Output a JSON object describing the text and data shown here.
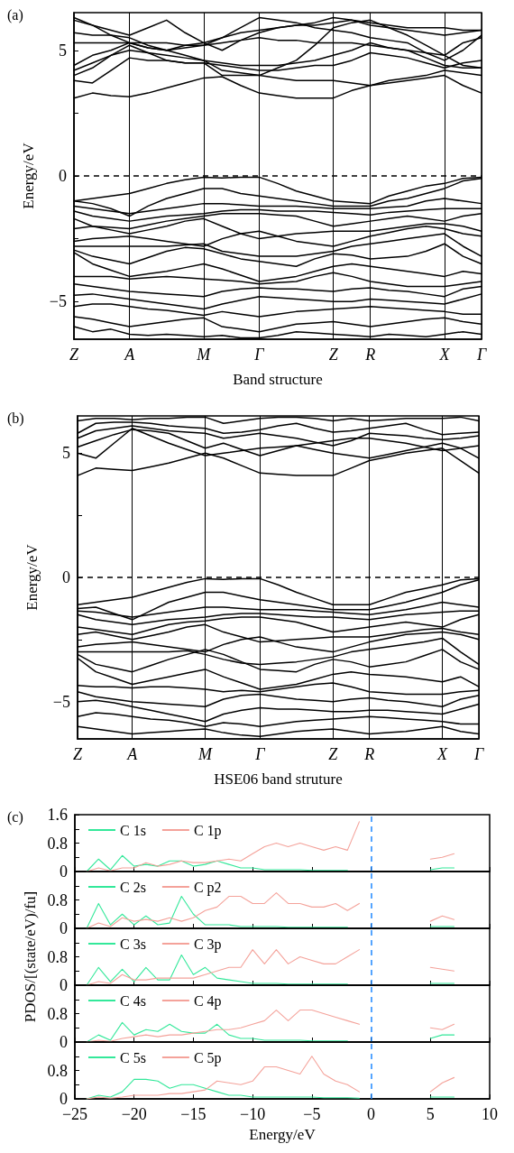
{
  "chart_data": [
    {
      "type": "line",
      "ylabel": "Energy/eV",
      "xlabel": "Band structure",
      "annotations": [
        "(a)"
      ],
      "ylim": [
        -6.5,
        6.5
      ],
      "categories": [
        "Z",
        null,
        null,
        "A",
        null,
        null,
        null,
        "M",
        null,
        null,
        "Γ",
        null,
        null,
        null,
        "Z",
        null,
        "R",
        null,
        null,
        null,
        "X",
        null,
        "Γ"
      ],
      "yticks": [
        {
          "value": -5,
          "label": "−5"
        },
        {
          "value": -2.5,
          "label": null
        },
        0,
        {
          "value": 2.5,
          "label": null
        },
        5
      ],
      "grid": "x",
      "legend": false,
      "marker": "none",
      "line_style": "solid",
      "ref_lines": [
        {
          "axis": "y",
          "value": 0,
          "color": "#000000",
          "line_style": "dashed"
        }
      ],
      "series": [
        {
          "color": "#000000",
          "values": [
            3.1,
            3.3,
            3.2,
            3.15,
            3.3,
            3.5,
            3.7,
            3.9,
            3.95,
            3.6,
            3.3,
            3.2,
            3.1,
            3.1,
            3.1,
            3.4,
            3.6,
            3.7,
            3.8,
            3.9,
            4.0,
            3.6,
            3.3
          ]
        },
        {
          "color": "#000000",
          "values": [
            3.8,
            3.7,
            4.2,
            4.7,
            4.6,
            4.6,
            4.5,
            4.5,
            4.4,
            4.3,
            4.2,
            4.2,
            4.3,
            4.4,
            4.4,
            4.6,
            4.9,
            4.8,
            4.7,
            4.5,
            4.3,
            4.5,
            4.6
          ]
        },
        {
          "color": "#000000",
          "values": [
            4.2,
            4.5,
            4.8,
            5.0,
            4.9,
            4.8,
            4.7,
            4.6,
            4.2,
            4.1,
            4.0,
            3.9,
            3.8,
            3.8,
            3.8,
            3.7,
            3.6,
            3.8,
            3.9,
            4.0,
            4.2,
            4.1,
            4.0
          ]
        },
        {
          "color": "#000000",
          "values": [
            4.4,
            4.8,
            5.0,
            5.3,
            5.1,
            5.0,
            4.8,
            4.6,
            4.5,
            4.4,
            4.4,
            4.4,
            4.5,
            4.6,
            4.8,
            5.0,
            5.3,
            5.1,
            5.0,
            4.7,
            4.4,
            4.3,
            4.3
          ]
        },
        {
          "color": "#000000",
          "values": [
            5.3,
            5.3,
            5.3,
            5.3,
            5.3,
            5.3,
            5.2,
            5.2,
            5.3,
            5.4,
            5.5,
            5.4,
            5.4,
            5.3,
            5.3,
            5.3,
            5.2,
            5.1,
            5.0,
            4.9,
            4.8,
            5.3,
            5.5
          ]
        },
        {
          "color": "#000000",
          "values": [
            5.7,
            5.6,
            5.6,
            5.5,
            5.2,
            5.0,
            5.1,
            5.2,
            5.5,
            5.7,
            5.8,
            5.9,
            6.0,
            6.1,
            6.3,
            6.2,
            6.0,
            5.9,
            5.8,
            5.7,
            5.6,
            5.7,
            5.8
          ]
        },
        {
          "color": "#000000",
          "values": [
            6.2,
            6.0,
            5.8,
            5.6,
            5.9,
            6.2,
            5.7,
            5.3,
            5.0,
            5.4,
            5.7,
            5.9,
            6.0,
            6.0,
            6.1,
            6.2,
            6.1,
            6.0,
            5.9,
            5.9,
            5.9,
            5.8,
            5.8
          ]
        },
        {
          "color": "#000000",
          "values": [
            6.3,
            6.0,
            5.6,
            5.3,
            5.1,
            5.0,
            5.2,
            5.3,
            5.5,
            5.9,
            6.3,
            6.2,
            6.1,
            5.9,
            5.8,
            5.7,
            5.5,
            5.4,
            5.3,
            4.9,
            4.6,
            5.0,
            5.6
          ]
        },
        {
          "color": "#000000",
          "values": [
            4.0,
            4.3,
            4.8,
            5.2,
            4.9,
            4.6,
            4.5,
            4.5,
            4.0,
            4.0,
            4.0,
            4.3,
            4.6,
            5.2,
            5.9,
            6.1,
            6.2,
            5.9,
            5.6,
            5.2,
            4.8,
            4.4,
            4.3
          ]
        },
        {
          "color": "#000000",
          "values": [
            -1.0,
            -0.9,
            -0.8,
            -0.7,
            -0.5,
            -0.3,
            -0.15,
            -0.05,
            -0.08,
            -0.05,
            -0.05,
            -0.3,
            -0.6,
            -0.8,
            -1.0,
            -1.05,
            -1.1,
            -0.8,
            -0.6,
            -0.4,
            -0.3,
            -0.1,
            -0.05
          ]
        },
        {
          "color": "#000000",
          "values": [
            -1.0,
            -1.1,
            -1.3,
            -1.6,
            -1.2,
            -0.9,
            -0.7,
            -0.5,
            -0.5,
            -0.7,
            -0.8,
            -0.9,
            -1.0,
            -1.1,
            -1.2,
            -1.2,
            -1.2,
            -1.0,
            -0.9,
            -0.7,
            -0.5,
            -0.2,
            -0.1
          ]
        },
        {
          "color": "#000000",
          "values": [
            -1.2,
            -1.3,
            -1.4,
            -1.5,
            -1.4,
            -1.3,
            -1.2,
            -1.1,
            -1.1,
            -1.15,
            -1.2,
            -1.2,
            -1.2,
            -1.25,
            -1.3,
            -1.3,
            -1.3,
            -1.25,
            -1.2,
            -1.0,
            -0.9,
            -1.0,
            -1.1
          ]
        },
        {
          "color": "#000000",
          "values": [
            -1.4,
            -1.6,
            -1.7,
            -1.8,
            -1.7,
            -1.6,
            -1.55,
            -1.5,
            -1.4,
            -1.35,
            -1.35,
            -1.4,
            -1.4,
            -1.4,
            -1.45,
            -1.5,
            -1.55,
            -1.45,
            -1.4,
            -1.35,
            -1.3,
            -1.3,
            -1.3
          ]
        },
        {
          "color": "#000000",
          "values": [
            -1.7,
            -2.0,
            -2.05,
            -2.1,
            -1.95,
            -1.8,
            -1.7,
            -1.6,
            -1.5,
            -1.5,
            -1.5,
            -1.55,
            -1.6,
            -1.8,
            -2.0,
            -1.9,
            -1.8,
            -1.7,
            -1.6,
            -1.7,
            -1.8,
            -1.6,
            -1.5
          ]
        },
        {
          "color": "#000000",
          "values": [
            -2.1,
            -2.0,
            -2.15,
            -2.3,
            -2.15,
            -2.0,
            -1.8,
            -1.7,
            -2.0,
            -2.3,
            -2.5,
            -2.4,
            -2.3,
            -2.25,
            -2.2,
            -2.2,
            -2.2,
            -2.1,
            -2.0,
            -1.9,
            -1.9,
            -2.0,
            -2.2
          ]
        },
        {
          "color": "#000000",
          "values": [
            -2.6,
            -2.5,
            -2.45,
            -2.4,
            -2.5,
            -2.6,
            -2.7,
            -2.8,
            -2.5,
            -2.3,
            -2.2,
            -2.4,
            -2.6,
            -2.7,
            -2.8,
            -2.6,
            -2.4,
            -2.25,
            -2.1,
            -2.0,
            -2.1,
            -2.3,
            -2.4
          ]
        },
        {
          "color": "#000000",
          "values": [
            -2.8,
            -2.8,
            -2.8,
            -2.8,
            -2.8,
            -2.8,
            -2.75,
            -2.7,
            -3.0,
            -3.1,
            -3.2,
            -3.2,
            -3.2,
            -3.1,
            -3.0,
            -2.8,
            -2.7,
            -2.6,
            -2.5,
            -2.4,
            -2.3,
            -2.8,
            -3.2
          ]
        },
        {
          "color": "#000000",
          "values": [
            -2.95,
            -3.2,
            -3.35,
            -3.5,
            -3.25,
            -3.0,
            -2.85,
            -2.9,
            -3.1,
            -3.3,
            -3.4,
            -3.5,
            -3.6,
            -3.3,
            -3.1,
            -3.15,
            -3.3,
            -3.25,
            -3.2,
            -3.0,
            -2.7,
            -3.2,
            -3.5
          ]
        },
        {
          "color": "#000000",
          "values": [
            -3.05,
            -3.5,
            -3.75,
            -4.0,
            -3.9,
            -3.8,
            -3.65,
            -3.5,
            -3.7,
            -3.95,
            -4.2,
            -4.1,
            -4.0,
            -3.8,
            -3.6,
            -3.5,
            -3.6,
            -3.7,
            -3.8,
            -3.9,
            -4.0,
            -3.8,
            -3.9
          ]
        },
        {
          "color": "#000000",
          "values": [
            -4.0,
            -4.0,
            -4.0,
            -4.1,
            -4.05,
            -4.0,
            -4.05,
            -4.1,
            -4.15,
            -4.2,
            -4.3,
            -4.25,
            -4.2,
            -4.0,
            -3.85,
            -4.0,
            -4.2,
            -4.3,
            -4.4,
            -4.4,
            -4.4,
            -4.3,
            -4.2
          ]
        },
        {
          "color": "#000000",
          "values": [
            -4.3,
            -4.4,
            -4.5,
            -4.6,
            -4.65,
            -4.7,
            -4.75,
            -4.8,
            -4.6,
            -4.5,
            -4.45,
            -4.5,
            -4.5,
            -4.55,
            -4.6,
            -4.5,
            -4.45,
            -4.55,
            -4.6,
            -4.7,
            -4.8,
            -4.5,
            -4.4
          ]
        },
        {
          "color": "#000000",
          "values": [
            -4.75,
            -4.7,
            -4.8,
            -4.9,
            -5.0,
            -5.1,
            -5.2,
            -5.3,
            -5.1,
            -4.95,
            -4.8,
            -4.85,
            -4.9,
            -4.95,
            -5.0,
            -5.0,
            -4.9,
            -4.95,
            -5.0,
            -5.05,
            -5.1,
            -4.9,
            -4.7
          ]
        },
        {
          "color": "#000000",
          "values": [
            -5.2,
            -5.1,
            -5.1,
            -5.2,
            -5.3,
            -5.35,
            -5.45,
            -5.55,
            -5.4,
            -5.5,
            -5.6,
            -5.5,
            -5.4,
            -5.35,
            -5.3,
            -5.25,
            -5.2,
            -5.25,
            -5.3,
            -5.35,
            -5.4,
            -5.5,
            -5.5
          ]
        },
        {
          "color": "#000000",
          "values": [
            -5.6,
            -5.7,
            -5.85,
            -6.0,
            -5.9,
            -5.8,
            -5.7,
            -5.65,
            -6.0,
            -6.1,
            -6.2,
            -6.05,
            -5.9,
            -5.85,
            -5.8,
            -5.9,
            -6.0,
            -5.9,
            -5.8,
            -5.7,
            -5.65,
            -5.8,
            -5.9
          ]
        },
        {
          "color": "#000000",
          "values": [
            -6.0,
            -6.2,
            -6.1,
            -6.3,
            -6.35,
            -6.3,
            -6.35,
            -6.4,
            -6.35,
            -6.45,
            -6.45,
            -6.35,
            -6.2,
            -6.25,
            -6.3,
            -6.35,
            -6.4,
            -6.3,
            -6.35,
            -6.4,
            -6.3,
            -6.2,
            -6.3
          ]
        }
      ]
    },
    {
      "type": "line",
      "ylabel": "Energy/eV",
      "xlabel": "HSE06 band struture",
      "annotations": [
        "(b)"
      ],
      "ylim": [
        -6.5,
        6.5
      ],
      "categories": [
        "Z",
        null,
        null,
        "A",
        null,
        null,
        null,
        "M",
        null,
        null,
        "Γ",
        null,
        null,
        null,
        "Z",
        null,
        "R",
        null,
        null,
        null,
        "X",
        null,
        "Γ"
      ],
      "yticks": [
        {
          "value": -5,
          "label": "−5"
        },
        {
          "value": -2.5,
          "label": null
        },
        0,
        {
          "value": 2.5,
          "label": null
        },
        5
      ],
      "grid": "x",
      "legend": false,
      "marker": "none",
      "line_style": "solid",
      "ref_lines": [
        {
          "axis": "y",
          "value": 0,
          "color": "#000000",
          "line_style": "dashed"
        }
      ],
      "series": [
        {
          "color": "#000000",
          "values": [
            4.1,
            4.4,
            4.35,
            4.3,
            4.45,
            4.6,
            4.8,
            5.0,
            4.8,
            4.5,
            4.2,
            4.15,
            4.1,
            4.1,
            4.1,
            4.4,
            4.7,
            4.85,
            5.0,
            5.1,
            5.2,
            4.7,
            4.2
          ]
        },
        {
          "color": "#000000",
          "values": [
            5.0,
            4.8,
            5.4,
            6.0,
            5.7,
            5.4,
            5.15,
            4.9,
            5.0,
            5.1,
            5.2,
            5.25,
            5.3,
            5.15,
            5.0,
            4.9,
            4.8,
            4.95,
            5.1,
            5.25,
            5.4,
            5.2,
            4.8
          ]
        },
        {
          "color": "#000000",
          "values": [
            5.25,
            5.5,
            5.75,
            5.95,
            5.9,
            5.8,
            5.5,
            5.2,
            5.4,
            5.15,
            4.9,
            5.1,
            5.3,
            5.4,
            5.5,
            5.6,
            5.6,
            5.5,
            5.4,
            5.25,
            5.1,
            5.2,
            5.3
          ]
        },
        {
          "color": "#000000",
          "values": [
            5.6,
            5.9,
            6.0,
            6.1,
            6.0,
            5.9,
            5.85,
            5.8,
            5.6,
            5.7,
            5.8,
            5.7,
            5.6,
            5.45,
            5.3,
            5.5,
            5.8,
            5.75,
            5.7,
            5.6,
            5.55,
            5.6,
            5.7
          ]
        },
        {
          "color": "#000000",
          "values": [
            5.8,
            6.2,
            6.25,
            6.25,
            6.2,
            6.1,
            6.05,
            6.0,
            5.8,
            5.85,
            5.95,
            6.1,
            6.2,
            6.0,
            5.85,
            5.9,
            6.0,
            6.1,
            6.2,
            5.95,
            5.75,
            5.8,
            5.85
          ]
        },
        {
          "color": "#000000",
          "values": [
            6.3,
            6.4,
            6.4,
            6.35,
            6.4,
            6.4,
            6.45,
            6.45,
            6.2,
            6.3,
            6.4,
            6.45,
            6.45,
            6.4,
            6.3,
            6.4,
            6.3,
            6.35,
            6.4,
            6.4,
            6.4,
            6.45,
            6.3
          ]
        },
        {
          "color": "#000000",
          "values": [
            -1.1,
            -1.0,
            -0.9,
            -0.8,
            -0.6,
            -0.4,
            -0.2,
            -0.05,
            -0.08,
            -0.05,
            -0.05,
            -0.3,
            -0.6,
            -0.85,
            -1.1,
            -1.1,
            -1.1,
            -0.85,
            -0.6,
            -0.45,
            -0.3,
            -0.1,
            -0.05
          ]
        },
        {
          "color": "#000000",
          "values": [
            -1.25,
            -1.2,
            -1.45,
            -1.7,
            -1.35,
            -1.0,
            -0.8,
            -0.6,
            -0.6,
            -0.75,
            -0.9,
            -1.0,
            -1.1,
            -1.2,
            -1.3,
            -1.3,
            -1.3,
            -1.15,
            -1.0,
            -0.8,
            -0.6,
            -0.3,
            -0.1
          ]
        },
        {
          "color": "#000000",
          "values": [
            -1.35,
            -1.4,
            -1.5,
            -1.6,
            -1.5,
            -1.4,
            -1.3,
            -1.2,
            -1.2,
            -1.25,
            -1.3,
            -1.3,
            -1.3,
            -1.35,
            -1.4,
            -1.45,
            -1.5,
            -1.4,
            -1.3,
            -1.15,
            -1.0,
            -1.1,
            -1.2
          ]
        },
        {
          "color": "#000000",
          "values": [
            -1.5,
            -1.7,
            -1.8,
            -1.9,
            -1.8,
            -1.7,
            -1.65,
            -1.6,
            -1.5,
            -1.45,
            -1.45,
            -1.5,
            -1.55,
            -1.6,
            -1.6,
            -1.65,
            -1.7,
            -1.6,
            -1.5,
            -1.45,
            -1.4,
            -1.35,
            -1.35
          ]
        },
        {
          "color": "#000000",
          "values": [
            -2.0,
            -2.1,
            -2.2,
            -2.3,
            -2.1,
            -1.9,
            -1.8,
            -1.75,
            -1.65,
            -1.6,
            -1.6,
            -1.7,
            -1.8,
            -2.0,
            -2.2,
            -2.1,
            -2.0,
            -1.9,
            -1.8,
            -1.9,
            -2.0,
            -1.7,
            -1.5
          ]
        },
        {
          "color": "#000000",
          "values": [
            -2.3,
            -2.2,
            -2.35,
            -2.5,
            -2.35,
            -2.2,
            -2.0,
            -1.9,
            -2.2,
            -2.4,
            -2.6,
            -2.55,
            -2.5,
            -2.45,
            -2.4,
            -2.4,
            -2.4,
            -2.3,
            -2.2,
            -2.1,
            -2.05,
            -2.2,
            -2.3
          ]
        },
        {
          "color": "#000000",
          "values": [
            -2.8,
            -2.7,
            -2.65,
            -2.6,
            -2.7,
            -2.8,
            -2.9,
            -3.0,
            -2.7,
            -2.5,
            -2.4,
            -2.6,
            -2.8,
            -2.9,
            -3.0,
            -2.8,
            -2.6,
            -2.45,
            -2.3,
            -2.25,
            -2.2,
            -2.3,
            -2.5
          ]
        },
        {
          "color": "#000000",
          "values": [
            -3.0,
            -3.0,
            -3.0,
            -3.0,
            -3.0,
            -3.0,
            -2.95,
            -3.1,
            -3.3,
            -3.45,
            -3.5,
            -3.45,
            -3.4,
            -3.3,
            -3.2,
            -3.0,
            -2.9,
            -2.8,
            -2.7,
            -2.6,
            -2.45,
            -3.0,
            -3.5
          ]
        },
        {
          "color": "#000000",
          "values": [
            -3.1,
            -3.5,
            -3.65,
            -3.8,
            -3.55,
            -3.3,
            -3.1,
            -2.9,
            -3.1,
            -3.4,
            -3.7,
            -3.75,
            -3.8,
            -3.5,
            -3.3,
            -3.4,
            -3.6,
            -3.5,
            -3.4,
            -3.15,
            -2.9,
            -3.4,
            -3.7
          ]
        },
        {
          "color": "#000000",
          "values": [
            -3.25,
            -3.8,
            -4.05,
            -4.3,
            -4.15,
            -4.0,
            -3.85,
            -3.7,
            -4.0,
            -4.25,
            -4.5,
            -4.4,
            -4.3,
            -4.1,
            -3.9,
            -3.8,
            -3.9,
            -3.95,
            -4.0,
            -4.1,
            -4.2,
            -4.0,
            -4.4
          ]
        },
        {
          "color": "#000000",
          "values": [
            -4.35,
            -4.4,
            -4.4,
            -4.45,
            -4.4,
            -4.4,
            -4.45,
            -4.5,
            -4.6,
            -4.55,
            -4.6,
            -4.5,
            -4.4,
            -4.3,
            -4.25,
            -4.4,
            -4.6,
            -4.65,
            -4.7,
            -4.7,
            -4.7,
            -4.6,
            -4.55
          ]
        },
        {
          "color": "#000000",
          "values": [
            -4.6,
            -4.8,
            -4.9,
            -5.0,
            -5.05,
            -5.1,
            -5.15,
            -5.2,
            -4.9,
            -4.75,
            -4.7,
            -4.8,
            -4.9,
            -4.95,
            -5.0,
            -4.9,
            -4.85,
            -4.95,
            -5.0,
            -5.1,
            -5.2,
            -4.9,
            -4.75
          ]
        },
        {
          "color": "#000000",
          "values": [
            -5.0,
            -4.95,
            -5.05,
            -5.2,
            -5.35,
            -5.5,
            -5.65,
            -5.8,
            -5.5,
            -5.35,
            -5.25,
            -5.3,
            -5.3,
            -5.35,
            -5.4,
            -5.4,
            -5.35,
            -5.35,
            -5.4,
            -5.45,
            -5.5,
            -5.3,
            -5.1
          ]
        },
        {
          "color": "#000000",
          "values": [
            -5.6,
            -5.45,
            -5.5,
            -5.6,
            -5.7,
            -5.75,
            -5.85,
            -6.0,
            -5.85,
            -5.9,
            -6.0,
            -5.9,
            -5.8,
            -5.75,
            -5.7,
            -5.65,
            -5.6,
            -5.65,
            -5.7,
            -5.75,
            -5.8,
            -5.9,
            -5.9
          ]
        },
        {
          "color": "#000000",
          "values": [
            -6.0,
            -6.1,
            -6.2,
            -6.3,
            -6.25,
            -6.2,
            -6.15,
            -6.1,
            -6.25,
            -6.35,
            -6.4,
            -6.3,
            -6.2,
            -6.15,
            -6.1,
            -6.2,
            -6.3,
            -6.25,
            -6.2,
            -6.1,
            -6.0,
            -6.2,
            -6.3
          ]
        }
      ]
    },
    {
      "type": "line",
      "annotations": [
        "(c)"
      ],
      "xlim": [
        -25,
        10
      ],
      "ylim": [
        0,
        1.6
      ],
      "tick_labels": "y",
      "legend": "top left",
      "grid": false,
      "marker": "none",
      "line_style": "solid",
      "xticks": [
        -25,
        -20,
        -15,
        -10,
        -5,
        0,
        5,
        10
      ],
      "yticks": [
        0,
        {
          "value": 0.4,
          "label": null
        },
        0.8,
        {
          "value": 1.2,
          "label": null
        },
        1.6
      ],
      "ref_lines": [
        {
          "axis": "x",
          "value": 0,
          "color": "#1e88ff",
          "line_style": "dashed"
        }
      ],
      "x": [
        -24,
        -23,
        -22,
        -21,
        -20,
        -19,
        -18,
        -17,
        -16,
        -15,
        -14,
        -13,
        -12,
        -11,
        -10,
        -9,
        -8,
        -7,
        -6,
        -5,
        -4,
        -3,
        -2,
        -1,
        2,
        5,
        6,
        7
      ],
      "series": [
        {
          "name": "C 1s",
          "color": "#33e89a",
          "values": [
            0,
            0.35,
            0.05,
            0.45,
            0.15,
            0.2,
            0.15,
            0.3,
            0.3,
            0.15,
            0.2,
            0.3,
            0.2,
            0.1,
            0.1,
            0.05,
            0.05,
            0.05,
            0.05,
            0.03,
            0.03,
            0.03,
            0.03,
            null,
            null,
            0.05,
            0.1,
            0.1
          ]
        },
        {
          "name": "C 1p",
          "color": "#f4a29a",
          "values": [
            0,
            0.1,
            0.02,
            0.1,
            0.1,
            0.25,
            0.15,
            0.2,
            0.3,
            0.25,
            0.25,
            0.3,
            0.35,
            0.3,
            0.5,
            0.7,
            0.8,
            0.7,
            0.8,
            0.7,
            0.6,
            0.7,
            0.6,
            1.4,
            null,
            0.35,
            0.4,
            0.5
          ]
        }
      ]
    },
    {
      "type": "line",
      "xlim": [
        -25,
        10
      ],
      "ylim": [
        0,
        1.6
      ],
      "tick_labels": "y",
      "legend": "top left",
      "grid": false,
      "marker": "none",
      "line_style": "solid",
      "xticks": [
        -25,
        -20,
        -15,
        -10,
        -5,
        0,
        5,
        10
      ],
      "yticks": [
        0,
        {
          "value": 0.4,
          "label": null
        },
        0.8,
        {
          "value": 1.2,
          "label": null
        }
      ],
      "ref_lines": [
        {
          "axis": "x",
          "value": 0,
          "color": "#1e88ff",
          "line_style": "dashed"
        }
      ],
      "x": [
        -24,
        -23,
        -22,
        -21,
        -20,
        -19,
        -18,
        -17,
        -16,
        -15,
        -14,
        -13,
        -12,
        -11,
        -10,
        -9,
        -8,
        -7,
        -6,
        -5,
        -4,
        -3,
        -2,
        -1,
        2,
        5,
        6,
        7
      ],
      "series": [
        {
          "name": "C 2s",
          "color": "#33e89a",
          "values": [
            0,
            0.7,
            0.1,
            0.4,
            0.1,
            0.35,
            0.1,
            0.15,
            0.9,
            0.4,
            0.1,
            0.1,
            0.1,
            0.05,
            0.05,
            0.05,
            0.05,
            0.03,
            0.03,
            0.03,
            0.03,
            0.03,
            0.03,
            null,
            null,
            0.05,
            0.05,
            0.05
          ]
        },
        {
          "name": "C p2",
          "color": "#f4a29a",
          "values": [
            0,
            0.15,
            0.05,
            0.3,
            0.2,
            0.25,
            0.2,
            0.3,
            0.2,
            0.3,
            0.5,
            0.6,
            0.9,
            0.9,
            0.7,
            0.7,
            1.0,
            0.7,
            0.7,
            0.6,
            0.6,
            0.7,
            0.5,
            0.7,
            null,
            0.2,
            0.35,
            0.25
          ]
        }
      ]
    },
    {
      "type": "line",
      "ylabel": "PDOS/[(state/eV)/fu]",
      "xlim": [
        -25,
        10
      ],
      "ylim": [
        0,
        1.6
      ],
      "tick_labels": "y",
      "legend": "top left",
      "grid": false,
      "marker": "none",
      "line_style": "solid",
      "xticks": [
        -25,
        -20,
        -15,
        -10,
        -5,
        0,
        5,
        10
      ],
      "yticks": [
        0,
        {
          "value": 0.4,
          "label": null
        },
        0.8,
        {
          "value": 1.2,
          "label": null
        }
      ],
      "ref_lines": [
        {
          "axis": "x",
          "value": 0,
          "color": "#1e88ff",
          "line_style": "dashed"
        }
      ],
      "x": [
        -24,
        -23,
        -22,
        -21,
        -20,
        -19,
        -18,
        -17,
        -16,
        -15,
        -14,
        -13,
        -12,
        -11,
        -10,
        -9,
        -8,
        -7,
        -6,
        -5,
        -4,
        -3,
        -2,
        -1,
        2,
        5,
        6,
        7
      ],
      "series": [
        {
          "name": "C 3s",
          "color": "#33e89a",
          "values": [
            0,
            0.5,
            0.1,
            0.45,
            0.1,
            0.5,
            0.15,
            0.15,
            0.85,
            0.3,
            0.5,
            0.2,
            0.15,
            0.1,
            0.05,
            0.05,
            0.05,
            0.03,
            0.03,
            0.03,
            0.03,
            0.03,
            0.03,
            null,
            null,
            0.05,
            0.05,
            0.05
          ]
        },
        {
          "name": "C 3p",
          "color": "#f4a29a",
          "values": [
            0,
            0.1,
            0.05,
            0.3,
            0.15,
            0.15,
            0.2,
            0.2,
            0.2,
            0.2,
            0.3,
            0.4,
            0.5,
            0.5,
            1.0,
            0.6,
            1.0,
            0.6,
            0.8,
            0.7,
            0.6,
            0.6,
            0.8,
            1.0,
            null,
            0.5,
            0.45,
            0.4
          ]
        }
      ]
    },
    {
      "type": "line",
      "xlim": [
        -25,
        10
      ],
      "ylim": [
        0,
        1.6
      ],
      "tick_labels": "y",
      "legend": "top left",
      "grid": false,
      "marker": "none",
      "line_style": "solid",
      "xticks": [
        -25,
        -20,
        -15,
        -10,
        -5,
        0,
        5,
        10
      ],
      "yticks": [
        0,
        {
          "value": 0.4,
          "label": null
        },
        0.8,
        {
          "value": 1.2,
          "label": null
        }
      ],
      "ref_lines": [
        {
          "axis": "x",
          "value": 0,
          "color": "#1e88ff",
          "line_style": "dashed"
        }
      ],
      "x": [
        -24,
        -23,
        -22,
        -21,
        -20,
        -19,
        -18,
        -17,
        -16,
        -15,
        -14,
        -13,
        -12,
        -11,
        -10,
        -9,
        -8,
        -7,
        -6,
        -5,
        -4,
        -3,
        -2,
        -1,
        2,
        5,
        6,
        7
      ],
      "series": [
        {
          "name": "C 4s",
          "color": "#33e89a",
          "values": [
            0,
            0.2,
            0.05,
            0.55,
            0.2,
            0.35,
            0.3,
            0.5,
            0.3,
            0.25,
            0.25,
            0.5,
            0.2,
            0.1,
            0.1,
            0.05,
            0.05,
            0.05,
            0.05,
            0.03,
            0.03,
            0.03,
            0.03,
            null,
            null,
            0.1,
            0.2,
            0.2
          ]
        },
        {
          "name": "C 4p",
          "color": "#f4a29a",
          "values": [
            0,
            0.05,
            0.02,
            0.1,
            0.15,
            0.2,
            0.15,
            0.2,
            0.2,
            0.25,
            0.3,
            0.35,
            0.35,
            0.4,
            0.5,
            0.6,
            0.9,
            0.6,
            0.9,
            0.9,
            0.8,
            0.7,
            0.6,
            0.5,
            null,
            0.4,
            0.35,
            0.5
          ]
        }
      ]
    },
    {
      "type": "line",
      "xlabel": "Energy/eV",
      "xlim": [
        -25,
        10
      ],
      "ylim": [
        0,
        1.6
      ],
      "legend": "top left",
      "grid": false,
      "marker": "none",
      "line_style": "solid",
      "xticks": [
        {
          "value": -25,
          "label": "−25"
        },
        {
          "value": -20,
          "label": "−20"
        },
        {
          "value": -15,
          "label": "−15"
        },
        {
          "value": -10,
          "label": "−10"
        },
        {
          "value": -5,
          "label": "−5"
        },
        0,
        5,
        10
      ],
      "yticks": [
        0,
        {
          "value": 0.4,
          "label": null
        },
        0.8,
        {
          "value": 1.2,
          "label": null
        }
      ],
      "ref_lines": [
        {
          "axis": "x",
          "value": 0,
          "color": "#1e88ff",
          "line_style": "dashed"
        }
      ],
      "x": [
        -24,
        -23,
        -22,
        -21,
        -20,
        -19,
        -18,
        -17,
        -16,
        -15,
        -14,
        -13,
        -12,
        -11,
        -10,
        -9,
        -8,
        -7,
        -6,
        -5,
        -4,
        -3,
        -2,
        -1,
        2,
        5,
        6,
        7
      ],
      "series": [
        {
          "name": "C 5s",
          "color": "#33e89a",
          "values": [
            0,
            0.1,
            0.05,
            0.2,
            0.55,
            0.55,
            0.5,
            0.3,
            0.4,
            0.4,
            0.3,
            0.2,
            0.1,
            0.1,
            0.05,
            0.05,
            0.05,
            0.05,
            0.05,
            0.05,
            0.03,
            0.03,
            0.03,
            0.02,
            null,
            0.05,
            0.05,
            0.05
          ]
        },
        {
          "name": "C 5p",
          "color": "#f4a29a",
          "values": [
            0,
            0.05,
            0.02,
            0.05,
            0.1,
            0.1,
            0.1,
            0.15,
            0.15,
            0.2,
            0.25,
            0.5,
            0.45,
            0.4,
            0.5,
            0.9,
            0.9,
            0.8,
            0.7,
            1.2,
            0.7,
            0.5,
            0.4,
            0.2,
            null,
            0.2,
            0.45,
            0.6
          ]
        }
      ]
    }
  ]
}
